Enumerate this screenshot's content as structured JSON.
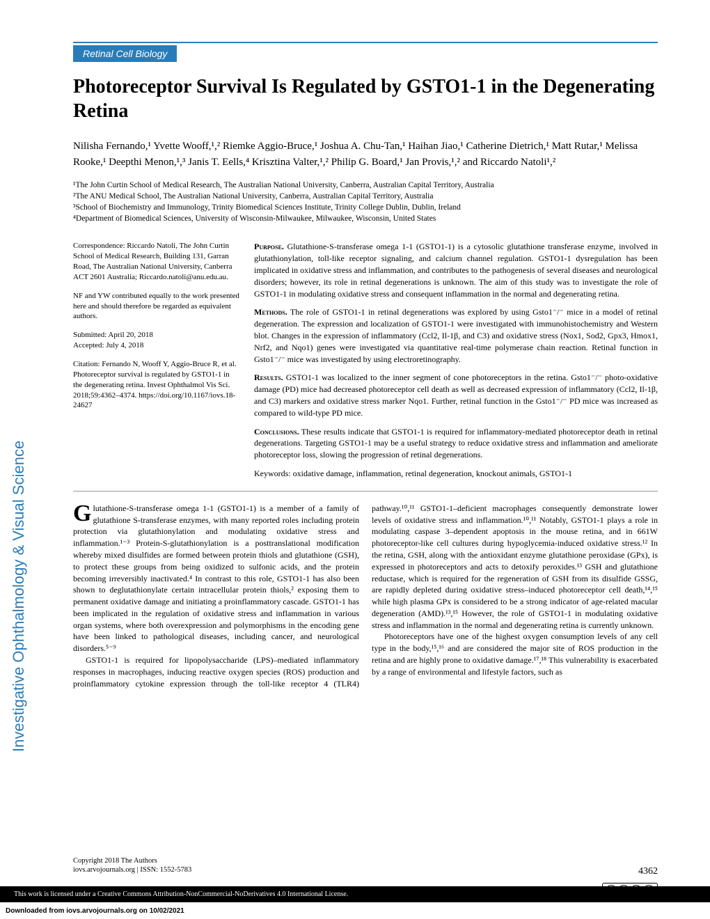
{
  "category": "Retinal Cell Biology",
  "title": "Photoreceptor Survival Is Regulated by GSTO1-1 in the Degenerating Retina",
  "authors_html": "Nilisha Fernando,¹ Yvette Wooff,¹,² Riemke Aggio-Bruce,¹ Joshua A. Chu-Tan,¹ Haihan Jiao,¹ Catherine Dietrich,¹ Matt Rutar,¹ Melissa Rooke,¹ Deepthi Menon,¹,³ Janis T. Eells,⁴ Krisztina Valter,¹,² Philip G. Board,¹ Jan Provis,¹,² and Riccardo Natoli¹,²",
  "affiliations": [
    "¹The John Curtin School of Medical Research, The Australian National University, Canberra, Australian Capital Territory, Australia",
    "²The ANU Medical School, The Australian National University, Canberra, Australian Capital Territory, Australia",
    "³School of Biochemistry and Immunology, Trinity Biomedical Sciences Institute, Trinity College Dublin, Dublin, Ireland",
    "⁴Department of Biomedical Sciences, University of Wisconsin-Milwaukee, Milwaukee, Wisconsin, United States"
  ],
  "correspondence": "Correspondence: Riccardo Natoli, The John Curtin School of Medical Research, Building 131, Garran Road, The Australian National University, Canberra ACT 2601 Australia; Riccardo.natoli@anu.edu.au.",
  "contrib_note": "NF and YW contributed equally to the work presented here and should therefore be regarded as equivalent authors.",
  "submitted": "Submitted: April 20, 2018",
  "accepted": "Accepted: July 4, 2018",
  "citation": "Citation: Fernando N, Wooff Y, Aggio-Bruce R, et al. Photoreceptor survival is regulated by GSTO1-1 in the degenerating retina. Invest Ophthalmol Vis Sci. 2018;59:4362–4374. https://doi.org/10.1167/iovs.18-24627",
  "abstract": {
    "purpose_label": "Purpose.",
    "purpose": " Glutathione-S-transferase omega 1-1 (GSTO1-1) is a cytosolic glutathione transferase enzyme, involved in glutathionylation, toll-like receptor signaling, and calcium channel regulation. GSTO1-1 dysregulation has been implicated in oxidative stress and inflammation, and contributes to the pathogenesis of several diseases and neurological disorders; however, its role in retinal degenerations is unknown. The aim of this study was to investigate the role of GSTO1-1 in modulating oxidative stress and consequent inflammation in the normal and degenerating retina.",
    "methods_label": "Methods.",
    "methods": " The role of GSTO1-1 in retinal degenerations was explored by using Gsto1⁻/⁻ mice in a model of retinal degeneration. The expression and localization of GSTO1-1 were investigated with immunohistochemistry and Western blot. Changes in the expression of inflammatory (Ccl2, Il-1β, and C3) and oxidative stress (Nox1, Sod2, Gpx3, Hmox1, Nrf2, and Nqo1) genes were investigated via quantitative real-time polymerase chain reaction. Retinal function in Gsto1⁻/⁻ mice was investigated by using electroretinography.",
    "results_label": "Results.",
    "results": " GSTO1-1 was localized to the inner segment of cone photoreceptors in the retina. Gsto1⁻/⁻ photo-oxidative damage (PD) mice had decreased photoreceptor cell death as well as decreased expression of inflammatory (Ccl2, Il-1β, and C3) markers and oxidative stress marker Nqo1. Further, retinal function in the Gsto1⁻/⁻ PD mice was increased as compared to wild-type PD mice.",
    "conclusions_label": "Conclusions.",
    "conclusions": " These results indicate that GSTO1-1 is required for inflammatory-mediated photoreceptor death in retinal degenerations. Targeting GSTO1-1 may be a useful strategy to reduce oxidative stress and inflammation and ameliorate photoreceptor loss, slowing the progression of retinal degenerations.",
    "keywords": "Keywords: oxidative damage, inflammation, retinal degeneration, knockout animals, GSTO1-1"
  },
  "body": {
    "p1_dropcap": "G",
    "p1": "lutathione-S-transferase omega 1-1 (GSTO1-1) is a member of a family of glutathione S-transferase enzymes, with many reported roles including protein protection via glutathionylation and modulating oxidative stress and inflammation.¹⁻³ Protein-S-glutathionylation is a posttranslational modification whereby mixed disulfides are formed between protein thiols and glutathione (GSH), to protect these groups from being oxidized to sulfonic acids, and the protein becoming irreversibly inactivated.⁴ In contrast to this role, GSTO1-1 has also been shown to deglutathionylate certain intracellular protein thiols,² exposing them to permanent oxidative damage and initiating a proinflammatory cascade. GSTO1-1 has been implicated in the regulation of oxidative stress and inflammation in various organ systems, where both overexpression and polymorphisms in the encoding gene have been linked to pathological diseases, including cancer, and neurological disorders.⁵⁻⁹",
    "p2": "GSTO1-1 is required for lipopolysaccharide (LPS)–mediated inflammatory responses in macrophages, inducing reactive oxygen species (ROS) production and proinflammatory cytokine expression through the toll-like receptor 4 (TLR4) pathway.¹⁰,¹¹ GSTO1-1–deficient macrophages consequently demonstrate lower levels of oxidative stress and inflammation.¹⁰,¹¹ Notably, GSTO1-1 plays a role in modulating caspase 3–dependent apoptosis in the mouse retina, and in 661W photoreceptor-like cell cultures during hypoglycemia-induced oxidative stress.¹² In the retina, GSH, along with the antioxidant enzyme glutathione peroxidase (GPx), is expressed in photoreceptors and acts to detoxify peroxides.¹³ GSH and glutathione reductase, which is required for the regeneration of GSH from its disulfide GSSG, are rapidly depleted during oxidative stress–induced photoreceptor cell death,¹⁴,¹⁵ while high plasma GPx is considered to be a strong indicator of age-related macular degeneration (AMD).¹³,¹⁵ However, the role of GSTO1-1 in modulating oxidative stress and inflammation in the normal and degenerating retina is currently unknown.",
    "p3": "Photoreceptors have one of the highest oxygen consumption levels of any cell type in the body,¹⁵,¹⁶ and are considered the major site of ROS production in the retina and are highly prone to oxidative damage.¹⁷,¹⁸ This vulnerability is exacerbated by a range of environmental and lifestyle factors, such as"
  },
  "sidebar": "Investigative Ophthalmology & Visual Science",
  "footer": {
    "copyright": "Copyright 2018 The Authors",
    "journal_info": "iovs.arvojournals.org | ISSN: 1552-5783",
    "page_number": "4362"
  },
  "license_text": "This work is licensed under a Creative Commons Attribution-NonCommercial-NoDerivatives 4.0 International License.",
  "download_note": "Downloaded from iovs.arvojournals.org on 10/02/2021",
  "colors": {
    "accent": "#2a7cb8",
    "text": "#000000",
    "background": "#ffffff"
  }
}
